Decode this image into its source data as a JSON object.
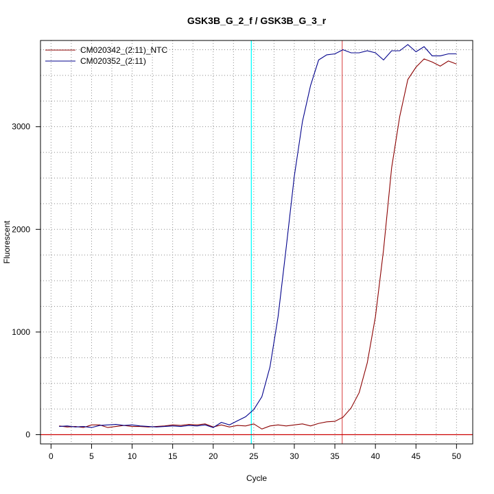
{
  "chart_data": {
    "type": "line",
    "title": "GSK3B_G_2_f / GSK3B_G_3_r",
    "xlabel": "Cycle",
    "ylabel": "Fluorescent",
    "xlim": [
      -1.3,
      52
    ],
    "ylim": [
      -90,
      3840
    ],
    "x_ticks": [
      0,
      5,
      10,
      15,
      20,
      25,
      30,
      35,
      40,
      45,
      50
    ],
    "y_ticks": [
      0,
      1000,
      2000,
      3000
    ],
    "grid": true,
    "legend_position": "top-left",
    "x": [
      1,
      2,
      3,
      4,
      5,
      6,
      7,
      8,
      9,
      10,
      11,
      12,
      13,
      14,
      15,
      16,
      17,
      18,
      19,
      20,
      21,
      22,
      23,
      24,
      25,
      26,
      27,
      28,
      29,
      30,
      31,
      32,
      33,
      34,
      35,
      36,
      37,
      38,
      39,
      40,
      41,
      42,
      43,
      44,
      45,
      46,
      47,
      48,
      49,
      50
    ],
    "series": [
      {
        "name": "CM020342_(2:11)_NTC",
        "color": "#8b0000",
        "values": [
          85,
          75,
          80,
          70,
          95,
          95,
          70,
          80,
          90,
          80,
          80,
          75,
          80,
          85,
          95,
          90,
          100,
          95,
          105,
          75,
          95,
          75,
          90,
          85,
          105,
          55,
          85,
          95,
          85,
          95,
          105,
          85,
          110,
          125,
          130,
          170,
          260,
          410,
          700,
          1150,
          1800,
          2600,
          3100,
          3460,
          3580,
          3660,
          3630,
          3590,
          3640,
          3610
        ]
      },
      {
        "name": "CM020352_(2:11)",
        "color": "#00008b",
        "values": [
          80,
          85,
          75,
          80,
          70,
          90,
          95,
          100,
          90,
          95,
          85,
          80,
          75,
          80,
          85,
          80,
          90,
          85,
          95,
          70,
          120,
          95,
          135,
          175,
          245,
          370,
          660,
          1150,
          1820,
          2520,
          3050,
          3400,
          3650,
          3700,
          3710,
          3750,
          3720,
          3720,
          3740,
          3720,
          3650,
          3740,
          3740,
          3800,
          3730,
          3780,
          3690,
          3690,
          3710,
          3710
        ]
      }
    ],
    "reference_lines": [
      {
        "orientation": "vertical",
        "value": 24.7,
        "color": "#00ffff"
      },
      {
        "orientation": "vertical",
        "value": 35.9,
        "color": "#e06666"
      },
      {
        "orientation": "horizontal",
        "value": 0,
        "color": "#cc0000"
      }
    ]
  }
}
